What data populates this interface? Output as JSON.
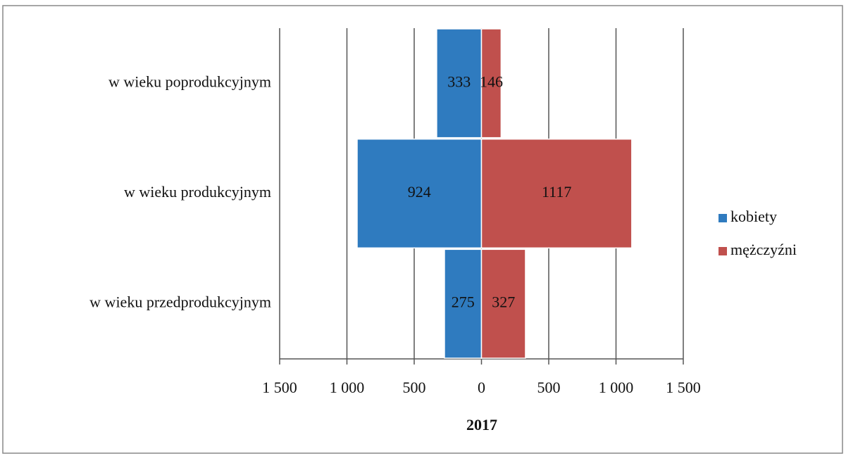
{
  "chart_data": {
    "type": "pyramid",
    "x_axis_title": "2017",
    "categories": [
      "w wieku poprodukcyjnym",
      "w wieku produkcyjnym",
      "w wieku przedprodukcyjnym"
    ],
    "series": [
      {
        "name": "kobiety",
        "color": "#2f7bbf",
        "side": "left",
        "values": [
          333,
          924,
          275
        ]
      },
      {
        "name": "mężczyźni",
        "color": "#c0504d",
        "side": "right",
        "values": [
          146,
          1117,
          327
        ]
      }
    ],
    "xlim": [
      -1500,
      1500
    ],
    "xticks": [
      {
        "value": -1500,
        "label": "1 500"
      },
      {
        "value": -1000,
        "label": "1 000"
      },
      {
        "value": -500,
        "label": "500"
      },
      0,
      500,
      {
        "value": 1000,
        "label": "1 000"
      },
      {
        "value": 1500,
        "label": "1 500"
      }
    ],
    "grid": true,
    "legend": "right"
  }
}
